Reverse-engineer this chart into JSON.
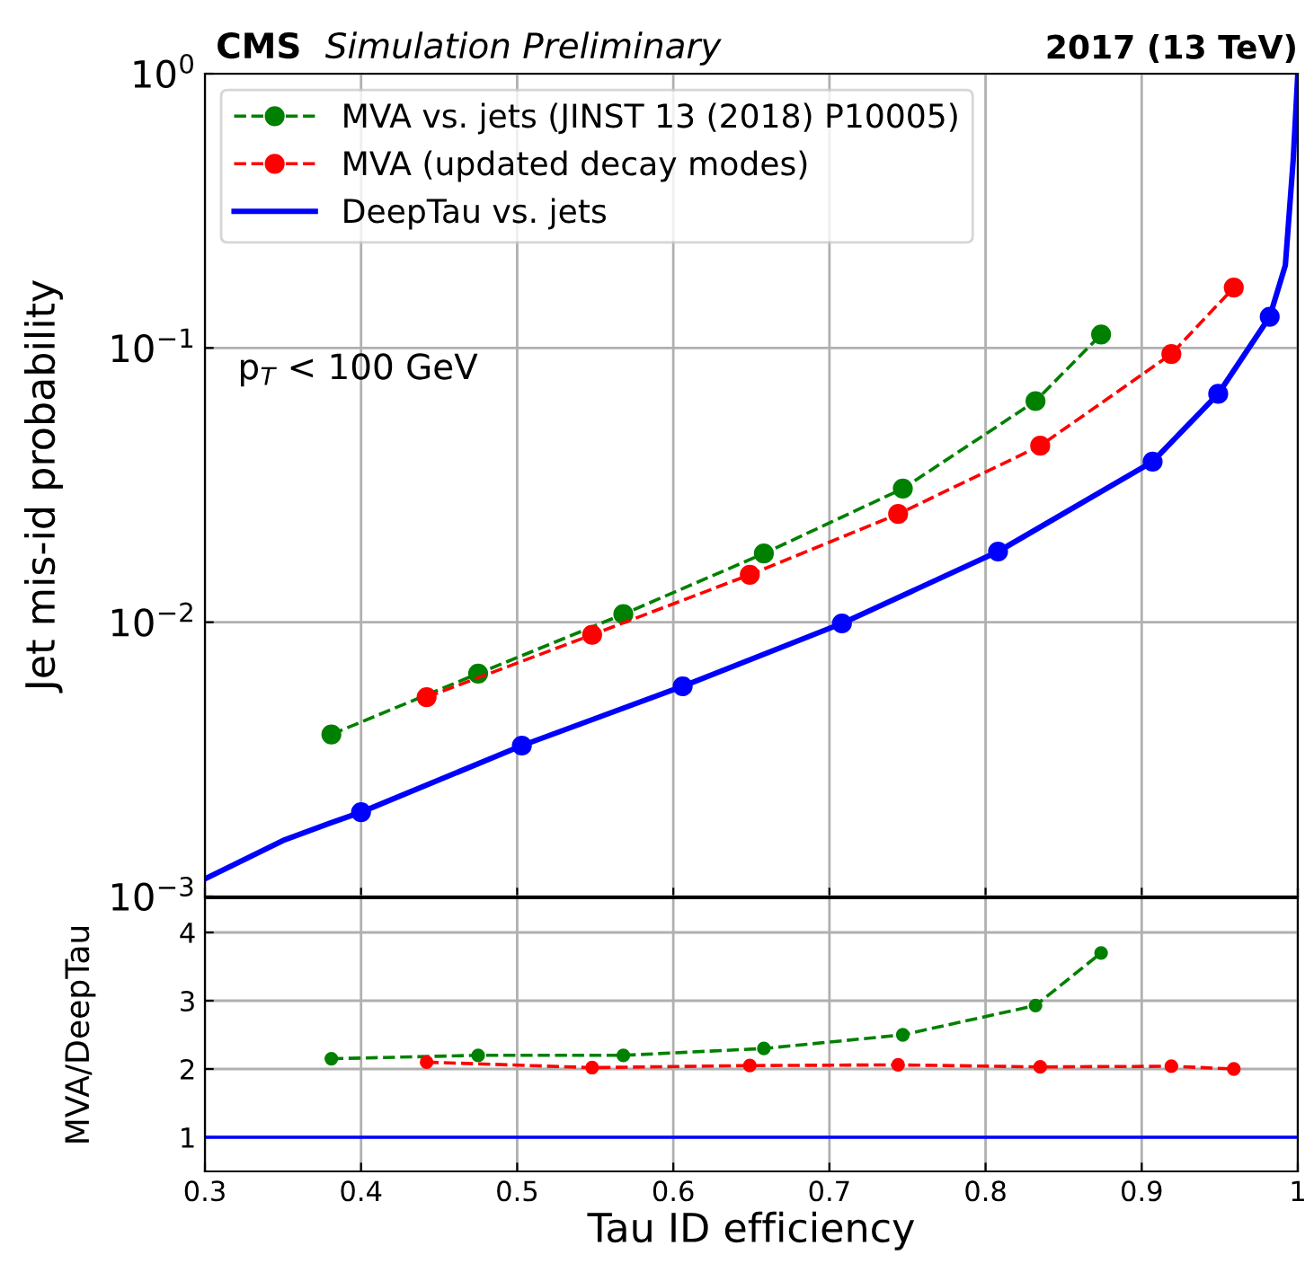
{
  "chart_data": [
    {
      "type": "line",
      "title": "CMS",
      "subtitle": "Simulation Preliminary",
      "ylabel": "Jet mis-id probability",
      "annotations": [
        "2017 (13 TeV)",
        "p$_{T}$ < 100 GeV"
      ],
      "log": "y",
      "xlim": [
        0.3,
        1.0
      ],
      "xticks": [
        0.3,
        0.4,
        0.5,
        0.6,
        0.7,
        0.8,
        0.9,
        1
      ],
      "ylim": [
        0.001,
        1
      ],
      "yticks": [
        {
          "value": 0.001,
          "label": "10$^{−3}$"
        },
        {
          "value": 0.01,
          "label": "10$^{−2}$"
        },
        {
          "value": 0.1,
          "label": "10$^{−1}$"
        },
        {
          "value": 1,
          "label": "10$^{0}$"
        }
      ],
      "tick_labels": "y",
      "grid": true,
      "legend": "top left",
      "series": [
        {
          "name": "MVA vs. jets (JINST 13 (2018) P10005)",
          "color": "#008000",
          "line_style": "dashed",
          "marker": "circle",
          "x": [
            0.381,
            0.475,
            0.568,
            0.658,
            0.747,
            0.832,
            0.874
          ],
          "values": [
            0.0039,
            0.0065,
            0.0107,
            0.0178,
            0.0307,
            0.064,
            0.112
          ]
        },
        {
          "name": "MVA (updated decay modes)",
          "color": "#ff0000",
          "line_style": "dashed",
          "marker": "circle",
          "x": [
            0.442,
            0.548,
            0.649,
            0.744,
            0.835,
            0.919,
            0.959
          ],
          "values": [
            0.00533,
            0.009,
            0.0149,
            0.0248,
            0.044,
            0.095,
            0.166
          ]
        },
        {
          "name": "DeepTau vs. jets",
          "color": "#0000ff",
          "line_style": "solid",
          "marker": "none",
          "x": [
            0.3,
            0.35,
            0.38,
            0.4,
            0.503,
            0.606,
            0.708,
            0.808,
            0.907,
            0.949,
            0.982,
            0.992,
            0.997,
            1.0
          ],
          "values": [
            0.00116,
            0.0016,
            0.00185,
            0.00203,
            0.00355,
            0.00584,
            0.0099,
            0.0181,
            0.0385,
            0.068,
            0.13,
            0.2,
            0.48,
            1.0
          ]
        },
        {
          "type": "scatter",
          "color": "#0000ff",
          "marker": "circle",
          "x": [
            0.4,
            0.503,
            0.606,
            0.708,
            0.808,
            0.907,
            0.949,
            0.982
          ],
          "values": [
            0.00203,
            0.00355,
            0.00584,
            0.0099,
            0.0181,
            0.0385,
            0.068,
            0.13
          ]
        }
      ]
    },
    {
      "type": "line",
      "xlabel": "Tau ID efficiency",
      "ylabel": "MVA/DeepTau",
      "xlim": [
        0.3,
        1.0
      ],
      "xticks": [
        0.3,
        0.4,
        0.5,
        0.6,
        0.7,
        0.8,
        0.9,
        1
      ],
      "ylim": [
        0.5,
        4.5
      ],
      "yticks": [
        1,
        2,
        3,
        4
      ],
      "grid": true,
      "ref_lines": [
        {
          "axis": "y",
          "value": 1,
          "color": "#0000ff",
          "line_style": "solid"
        }
      ],
      "series": [
        {
          "color": "#008000",
          "line_style": "dashed",
          "marker": "circle",
          "x": [
            0.381,
            0.475,
            0.568,
            0.658,
            0.747,
            0.832,
            0.874
          ],
          "values": [
            2.15,
            2.2,
            2.2,
            2.3,
            2.5,
            2.93,
            3.7
          ]
        },
        {
          "color": "#ff0000",
          "line_style": "dashed",
          "marker": "circle",
          "x": [
            0.442,
            0.548,
            0.649,
            0.744,
            0.835,
            0.919,
            0.959
          ],
          "values": [
            2.1,
            2.02,
            2.05,
            2.06,
            2.03,
            2.04,
            2.0
          ]
        }
      ]
    }
  ]
}
